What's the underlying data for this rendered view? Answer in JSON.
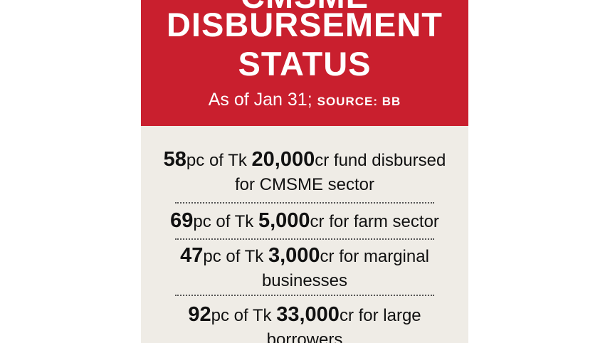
{
  "header": {
    "title_top": "CMSME",
    "title_line1": "DISBURSEMENT",
    "title_line2": "STATUS",
    "subtitle_prefix": "As of Jan 31;",
    "source_label": "SOURCE: BB"
  },
  "items": [
    {
      "percent": "58",
      "mid_text": "pc of Tk",
      "amount": "20,000",
      "suffix": "cr fund disbursed",
      "line2": "for CMSME sector"
    },
    {
      "percent": "69",
      "mid_text": "pc of Tk",
      "amount": "5,000",
      "suffix": "cr for farm sector"
    },
    {
      "percent": "47",
      "mid_text": "pc of Tk",
      "amount": "3,000",
      "suffix": "cr for marginal",
      "line2": "businesses"
    },
    {
      "percent": "92",
      "mid_text": "pc of Tk",
      "amount": "33,000",
      "suffix": "cr for large",
      "line2": "borrowers"
    }
  ],
  "colors": {
    "header_bg": "#c91f2e",
    "body_bg": "#efece6",
    "text": "#111111"
  }
}
